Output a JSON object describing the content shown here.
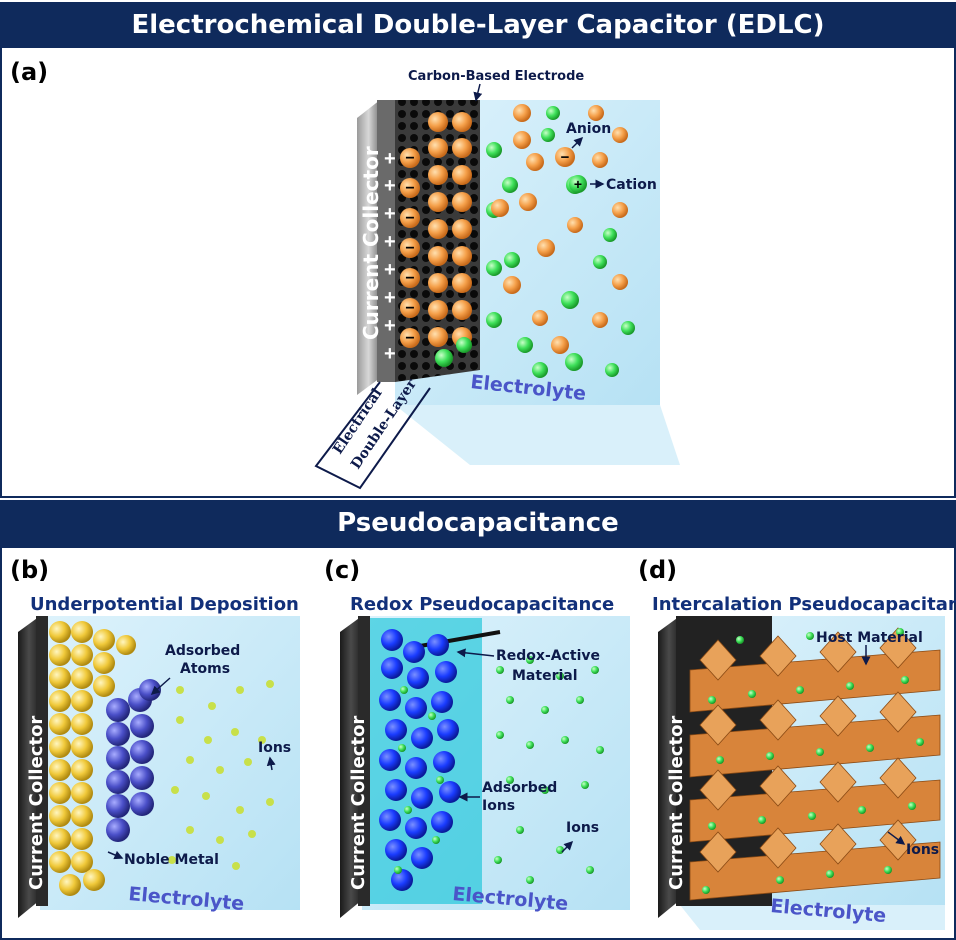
{
  "edlc": {
    "banner": "Electrochemical Double-Layer Capacitor (EDLC)",
    "letter": "(a)",
    "current_collector": "Current Collector",
    "carbon_electrode": "Carbon-Based Electrode",
    "anion": "Anion",
    "cation": "Cation",
    "electrolyte": "Electrolyte",
    "double_layer_line1": "Electrical",
    "double_layer_line2": "Double-Layer",
    "plus": "+",
    "minus": "−"
  },
  "pseudo": {
    "banner": "Pseudocapacitance",
    "panels": [
      {
        "letter": "(b)",
        "title": "Underpotential Deposition",
        "current_collector": "Current Collector",
        "label1_line1": "Adsorbed",
        "label1_line2": "Atoms",
        "ions": "Ions",
        "noble_metal": "Noble Metal",
        "electrolyte": "Electrolyte"
      },
      {
        "letter": "(c)",
        "title": "Redox Pseudocapacitance",
        "current_collector": "Current Collector",
        "redox_line1": "Redox-Active",
        "redox_line2": "Material",
        "adsorbed_line1": "Adsorbed",
        "adsorbed_line2": "Ions",
        "ions": "Ions",
        "electrolyte": "Electrolyte"
      },
      {
        "letter": "(d)",
        "title": "Intercalation Pseudocapacitance",
        "current_collector": "Current Collector",
        "host_material": "Host Material",
        "ions": "Ions",
        "electrolyte": "Electrolyte"
      }
    ]
  },
  "colors": {
    "banner": "#0f2a5c",
    "label": "#0d1a4a",
    "anion": "#f5a04a",
    "cation": "#3ee05a",
    "electrolyte": "#bfe6f6",
    "gold": "#f0c93a",
    "purple": "#4a4fc8",
    "blue": "#1a3cff",
    "octahedra": "#d8843a"
  }
}
